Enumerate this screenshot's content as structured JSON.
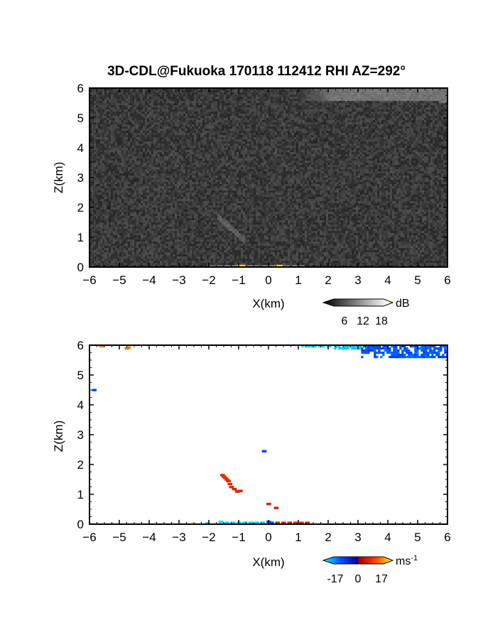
{
  "title": "3D-CDL@Fukuoka 170118 112412 RHI AZ=292°",
  "chart_data": [
    {
      "type": "heatmap",
      "panel": "reflectivity",
      "xlabel": "X(km)",
      "ylabel": "Z(km)",
      "xlim": [
        -6,
        6
      ],
      "ylim": [
        0,
        6
      ],
      "xticks": [
        "-6",
        "-5",
        "-4",
        "-3",
        "-2",
        "-1",
        "0",
        "1",
        "2",
        "3",
        "4",
        "5",
        "6"
      ],
      "yticks": [
        "0",
        "1",
        "2",
        "3",
        "4",
        "5",
        "6"
      ],
      "grid": false,
      "colorbar": {
        "unit": "dB",
        "ticks": [
          "6",
          "12",
          "18"
        ],
        "range": [
          0,
          24
        ],
        "colormap": "grayscale-to-yellow"
      },
      "features": [
        {
          "kind": "background-noise",
          "value_db": 4
        },
        {
          "kind": "bright-band",
          "x": [
            1,
            6
          ],
          "z": [
            5.6,
            6
          ],
          "value_db": 12
        },
        {
          "kind": "faint-streak",
          "x": [
            -1.7,
            -0.8
          ],
          "z": [
            0.9,
            1.7
          ],
          "value_db": 9
        },
        {
          "kind": "surface-echo",
          "x": [
            -2,
            1.2
          ],
          "z": [
            0,
            0.1
          ],
          "value_db": 20
        }
      ]
    },
    {
      "type": "heatmap",
      "panel": "doppler-velocity",
      "xlabel": "X(km)",
      "ylabel": "Z(km)",
      "xlim": [
        -6,
        6
      ],
      "ylim": [
        0,
        6
      ],
      "xticks": [
        "-6",
        "-5",
        "-4",
        "-3",
        "-2",
        "-1",
        "0",
        "1",
        "2",
        "3",
        "4",
        "5",
        "6"
      ],
      "yticks": [
        "0",
        "1",
        "2",
        "3",
        "4",
        "5",
        "6"
      ],
      "grid": false,
      "colorbar": {
        "unit": "ms",
        "unit_superscript": "-1",
        "ticks": [
          "-17",
          "0",
          "17"
        ],
        "range": [
          -25,
          25
        ],
        "colormap": "blue-cyan-red-yellow"
      },
      "points": [
        {
          "x": -5.6,
          "z": 5.97,
          "v": 15
        },
        {
          "x": -4.7,
          "z": 5.93,
          "v": 15
        },
        {
          "x": -4.75,
          "z": 5.9,
          "v": 13
        },
        {
          "x": -5.85,
          "z": 4.5,
          "v": -9
        },
        {
          "x": -0.15,
          "z": 2.45,
          "v": -9
        },
        {
          "x": -1.55,
          "z": 1.65,
          "v": 7
        },
        {
          "x": -1.5,
          "z": 1.6,
          "v": 7
        },
        {
          "x": -1.45,
          "z": 1.55,
          "v": 7
        },
        {
          "x": -1.4,
          "z": 1.5,
          "v": 7
        },
        {
          "x": -1.35,
          "z": 1.45,
          "v": 6
        },
        {
          "x": -1.3,
          "z": 1.35,
          "v": 6
        },
        {
          "x": -1.25,
          "z": 1.25,
          "v": 6
        },
        {
          "x": -1.15,
          "z": 1.18,
          "v": 5
        },
        {
          "x": -1.05,
          "z": 1.1,
          "v": 5
        },
        {
          "x": -0.95,
          "z": 1.12,
          "v": 5
        },
        {
          "x": 0.0,
          "z": 0.68,
          "v": 5
        },
        {
          "x": 0.25,
          "z": 0.55,
          "v": 5
        },
        {
          "x": -2.05,
          "z": 0.03,
          "v": -20
        },
        {
          "x": -1.6,
          "z": 0.08,
          "v": -20
        },
        {
          "x": -1.4,
          "z": 0.05,
          "v": -20
        },
        {
          "x": -1.2,
          "z": 0.05,
          "v": -20
        },
        {
          "x": -1.0,
          "z": 0.05,
          "v": -20
        },
        {
          "x": -0.8,
          "z": 0.05,
          "v": -20
        },
        {
          "x": -0.6,
          "z": 0.05,
          "v": -20
        },
        {
          "x": -0.4,
          "z": 0.05,
          "v": -20
        },
        {
          "x": -0.2,
          "z": 0.05,
          "v": -20
        },
        {
          "x": 0.0,
          "z": 0.08,
          "v": -9
        },
        {
          "x": 0.1,
          "z": 0.05,
          "v": -9
        },
        {
          "x": 0.3,
          "z": 0.05,
          "v": 6
        },
        {
          "x": 0.5,
          "z": 0.05,
          "v": 6
        },
        {
          "x": 0.7,
          "z": 0.05,
          "v": 6
        },
        {
          "x": 0.9,
          "z": 0.05,
          "v": 6
        },
        {
          "x": 1.1,
          "z": 0.05,
          "v": 6
        },
        {
          "x": 1.3,
          "z": 0.05,
          "v": 6
        }
      ],
      "regions": [
        {
          "x": [
            1.1,
            2.2
          ],
          "z": [
            5.9,
            6
          ],
          "v": -20
        },
        {
          "x": [
            2.2,
            3.1
          ],
          "z": [
            5.85,
            6
          ],
          "v": -18
        },
        {
          "x": [
            3.1,
            6
          ],
          "z": [
            5.55,
            6
          ],
          "v": -10
        }
      ]
    }
  ]
}
